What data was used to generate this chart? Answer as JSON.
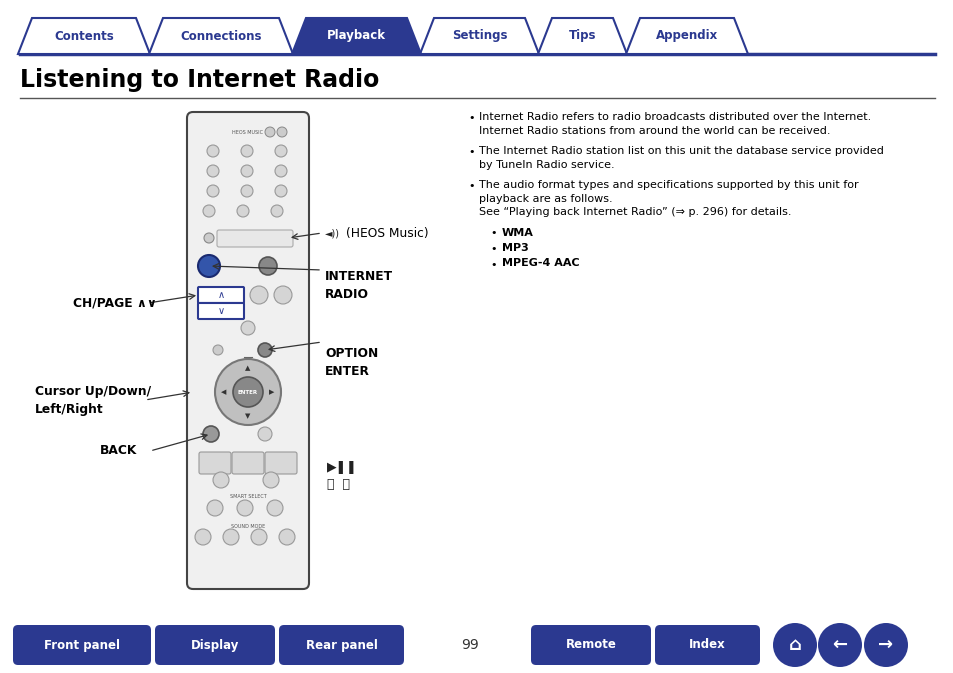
{
  "title": "Listening to Internet Radio",
  "tab_labels": [
    "Contents",
    "Connections",
    "Playback",
    "Settings",
    "Tips",
    "Appendix"
  ],
  "active_tab": 2,
  "tab_color_active": "#2b3990",
  "tab_color_inactive": "#ffffff",
  "tab_border_color": "#2b3990",
  "tab_text_color_active": "#ffffff",
  "tab_text_color_inactive": "#2b3990",
  "bottom_buttons": [
    "Front panel",
    "Display",
    "Rear panel",
    "Remote",
    "Index"
  ],
  "bottom_button_color": "#2b3990",
  "bottom_button_text_color": "#ffffff",
  "page_number": "99",
  "bg_color": "#ffffff",
  "title_color": "#000000",
  "bullet_points": [
    [
      "Internet Radio refers to radio broadcasts distributed over the Internet.",
      "Internet Radio stations from around the world can be received."
    ],
    [
      "The Internet Radio station list on this unit the database service provided",
      "by TuneIn Radio service."
    ],
    [
      "The audio format types and specifications supported by this unit for",
      "playback are as follows.",
      "See “Playing back Internet Radio” (⇒ p. 296) for details."
    ]
  ],
  "sub_bullets": [
    "WMA",
    "MP3",
    "MPEG-4 AAC"
  ],
  "label_heos": "(HEOS Music)",
  "label_internet_radio": "INTERNET\nRADIO",
  "label_option_enter": "OPTION\nENTER",
  "label_ch_page": "CH/PAGE ∧∨",
  "label_cursor": "Cursor Up/Down/\nLeft/Right",
  "label_back": "BACK",
  "label_playback1": "▶‖",
  "label_playback2": "⧏⁡ ⧐"
}
